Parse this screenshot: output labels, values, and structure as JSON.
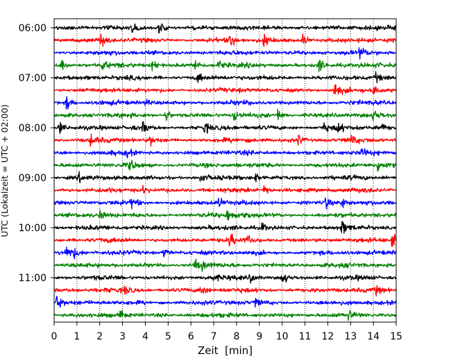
{
  "chart_data": {
    "type": "line",
    "title": "",
    "xlabel": "Zeit  [min]",
    "ylabel": "UTC (Lokalzeit = UTC + 02:00)",
    "xlim": [
      0,
      15
    ],
    "x_ticks": [
      "0",
      "1",
      "2",
      "3",
      "4",
      "5",
      "6",
      "7",
      "8",
      "9",
      "10",
      "11",
      "12",
      "13",
      "14",
      "15"
    ],
    "y_ticks": [
      "06:00",
      "07:00",
      "08:00",
      "09:00",
      "10:00",
      "11:00"
    ],
    "grid": "vertical dotted at each minute",
    "legend": "none",
    "trace_interval_min": 15,
    "color_cycle": [
      "#000000",
      "#ff0000",
      "#0000ff",
      "#008000"
    ],
    "traces": [
      {
        "start": "06:00",
        "color": "#000000",
        "events": [
          [
            3.4,
            1.2
          ],
          [
            4.6,
            2.6
          ]
        ]
      },
      {
        "start": "06:15",
        "color": "#ff0000",
        "events": [
          [
            2.05,
            2.6
          ],
          [
            7.7,
            2.4
          ],
          [
            9.2,
            2.6
          ],
          [
            10.9,
            2.2
          ]
        ]
      },
      {
        "start": "06:30",
        "color": "#0000ff",
        "events": [
          [
            13.4,
            1.6
          ]
        ]
      },
      {
        "start": "06:45",
        "color": "#008000",
        "events": [
          [
            0.3,
            1.8
          ],
          [
            2.1,
            1.4
          ],
          [
            4.3,
            2.1
          ],
          [
            6.2,
            1.8
          ],
          [
            7.2,
            1.4
          ],
          [
            11.6,
            2.3
          ]
        ]
      },
      {
        "start": "07:00",
        "color": "#000000",
        "events": [
          [
            6.3,
            1.6
          ],
          [
            14.1,
            1.4
          ]
        ]
      },
      {
        "start": "07:15",
        "color": "#ff0000",
        "events": [
          [
            12.3,
            3.0
          ],
          [
            14.0,
            1.6
          ]
        ]
      },
      {
        "start": "07:30",
        "color": "#0000ff",
        "events": [
          [
            0.55,
            2.8
          ],
          [
            4.0,
            1.2
          ]
        ]
      },
      {
        "start": "07:45",
        "color": "#008000",
        "events": [
          [
            4.9,
            1.9
          ],
          [
            7.9,
            1.7
          ],
          [
            9.8,
            2.3
          ],
          [
            14.0,
            1.8
          ]
        ]
      },
      {
        "start": "08:00",
        "color": "#000000",
        "events": [
          [
            0.2,
            2.2
          ],
          [
            3.9,
            1.8
          ],
          [
            6.6,
            1.6
          ],
          [
            11.8,
            1.6
          ],
          [
            12.4,
            2.1
          ],
          [
            14.3,
            1.6
          ]
        ]
      },
      {
        "start": "08:15",
        "color": "#ff0000",
        "events": [
          [
            1.6,
            1.8
          ],
          [
            4.2,
            1.4
          ],
          [
            10.7,
            1.6
          ],
          [
            13.0,
            1.5
          ]
        ]
      },
      {
        "start": "08:30",
        "color": "#0000ff",
        "events": [
          [
            3.2,
            1.4
          ],
          [
            13.5,
            1.3
          ]
        ]
      },
      {
        "start": "08:45",
        "color": "#008000",
        "events": [
          [
            3.3,
            2.1
          ],
          [
            14.2,
            1.9
          ]
        ]
      },
      {
        "start": "09:00",
        "color": "#000000",
        "events": [
          [
            1.1,
            1.4
          ],
          [
            6.4,
            1.5
          ],
          [
            8.8,
            1.5
          ]
        ]
      },
      {
        "start": "09:15",
        "color": "#ff0000",
        "events": [
          [
            3.9,
            1.3
          ],
          [
            9.2,
            1.5
          ]
        ]
      },
      {
        "start": "09:30",
        "color": "#0000ff",
        "events": [
          [
            3.4,
            1.9
          ],
          [
            7.2,
            1.6
          ],
          [
            11.9,
            1.8
          ],
          [
            12.6,
            1.8
          ]
        ]
      },
      {
        "start": "09:45",
        "color": "#008000",
        "events": [
          [
            2.0,
            1.4
          ],
          [
            7.6,
            1.9
          ],
          [
            8.3,
            1.6
          ]
        ]
      },
      {
        "start": "10:00",
        "color": "#000000",
        "events": [
          [
            9.1,
            1.6
          ],
          [
            12.6,
            2.1
          ]
        ]
      },
      {
        "start": "10:15",
        "color": "#ff0000",
        "events": [
          [
            7.7,
            2.3
          ],
          [
            8.5,
            1.6
          ],
          [
            14.8,
            2.8
          ]
        ]
      },
      {
        "start": "10:30",
        "color": "#0000ff",
        "events": [
          [
            0.5,
            2.8
          ],
          [
            0.8,
            2.2
          ],
          [
            4.8,
            1.6
          ]
        ]
      },
      {
        "start": "10:45",
        "color": "#008000",
        "events": [
          [
            6.2,
            1.8
          ],
          [
            6.5,
            1.5
          ]
        ]
      },
      {
        "start": "11:00",
        "color": "#000000",
        "events": [
          [
            6.8,
            1.6
          ],
          [
            8.6,
            1.6
          ],
          [
            10.0,
            2.3
          ]
        ]
      },
      {
        "start": "11:15",
        "color": "#ff0000",
        "events": [
          [
            3.1,
            1.3
          ],
          [
            6.4,
            2.2
          ],
          [
            14.1,
            1.3
          ]
        ]
      },
      {
        "start": "11:30",
        "color": "#0000ff",
        "events": [
          [
            0.1,
            2.6
          ],
          [
            8.8,
            1.4
          ]
        ]
      },
      {
        "start": "11:45",
        "color": "#008000",
        "events": [
          [
            2.9,
            1.4
          ],
          [
            12.9,
            1.4
          ]
        ]
      }
    ]
  }
}
